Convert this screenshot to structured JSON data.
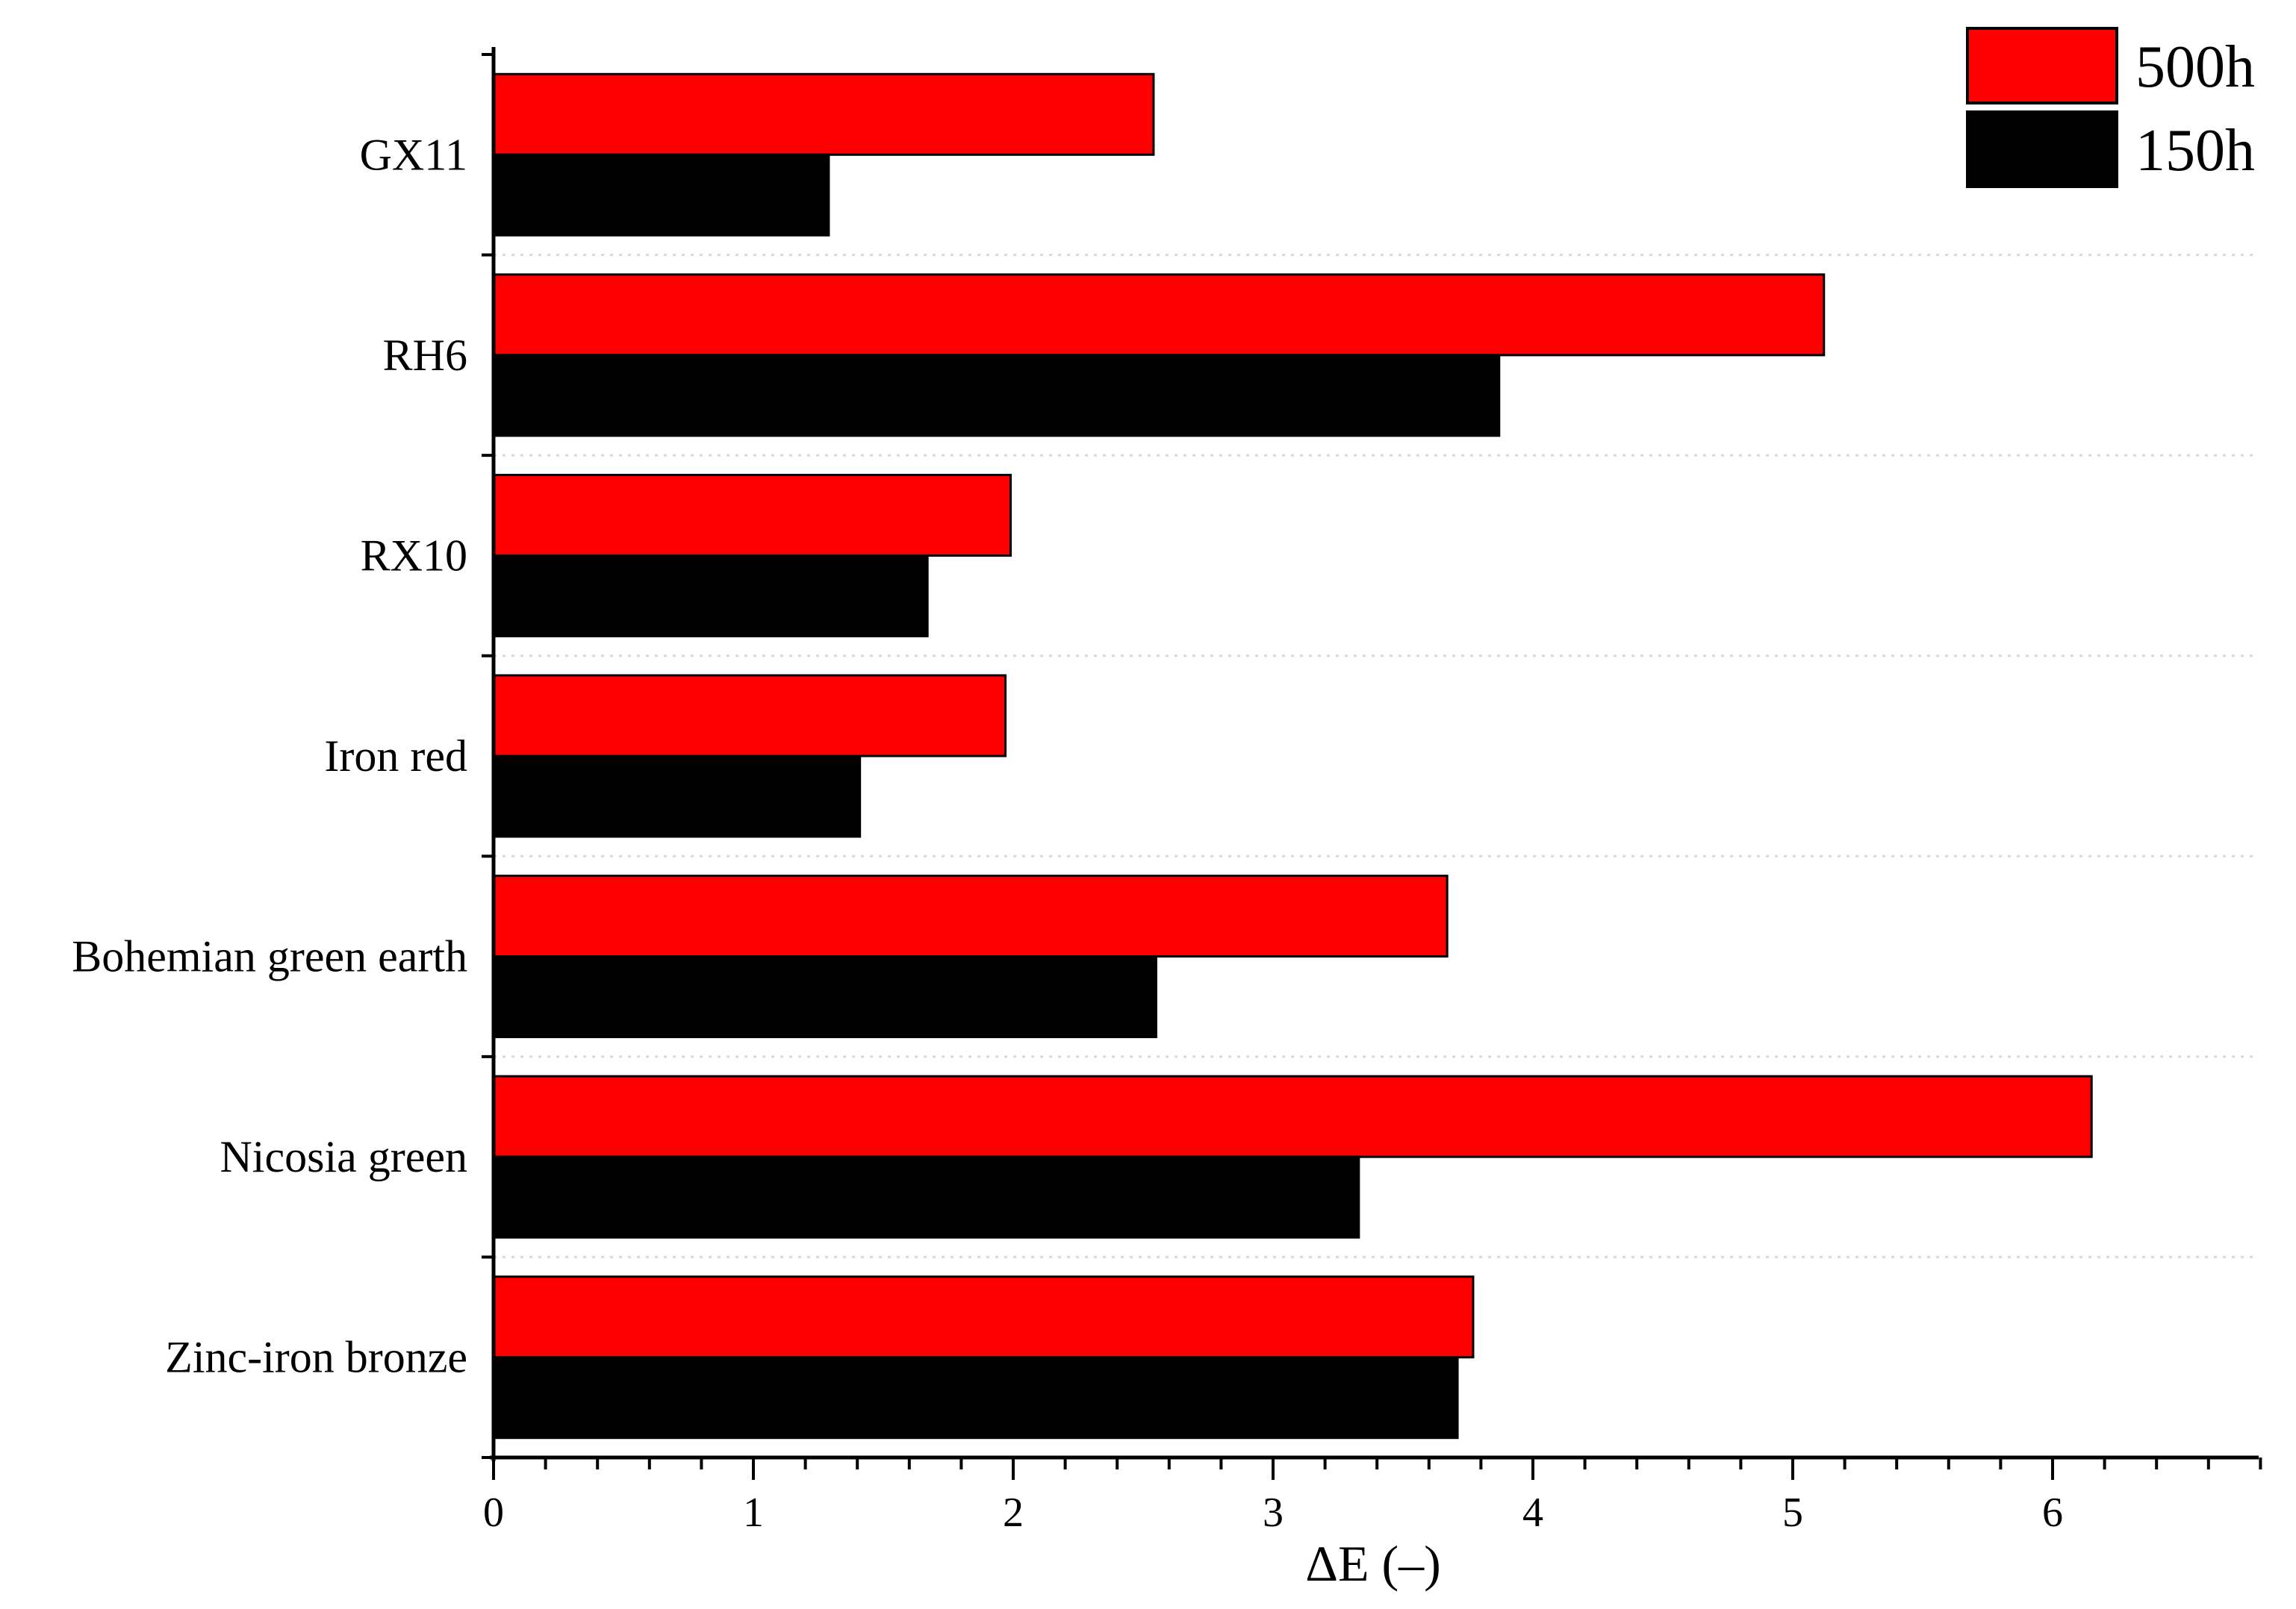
{
  "colors": {
    "series_500h": "#ff0000",
    "series_150h": "#000000",
    "axis": "#000000",
    "grid": "#d8d8d8"
  },
  "chart_data": {
    "type": "bar",
    "orientation": "horizontal",
    "title": "",
    "xlabel": "ΔE (–)",
    "ylabel": "",
    "xlim": [
      0,
      6.8
    ],
    "x_ticks": [
      "0",
      "1",
      "2",
      "3",
      "4",
      "5",
      "6"
    ],
    "grid": "horizontal dotted separators between categories",
    "legend_position": "top-right",
    "categories": [
      "GX11",
      "RH6",
      "RX10",
      "Iron red",
      "Bohemian green earth",
      "Nicosia green",
      "Zinc-iron bronze"
    ],
    "series": [
      {
        "name": "500h",
        "color": "#ff0000",
        "values": [
          2.54,
          5.12,
          1.99,
          1.97,
          3.67,
          6.15,
          3.77
        ]
      },
      {
        "name": "150h",
        "color": "#000000",
        "values": [
          1.29,
          3.87,
          1.67,
          1.41,
          2.55,
          3.33,
          3.71
        ]
      }
    ]
  }
}
